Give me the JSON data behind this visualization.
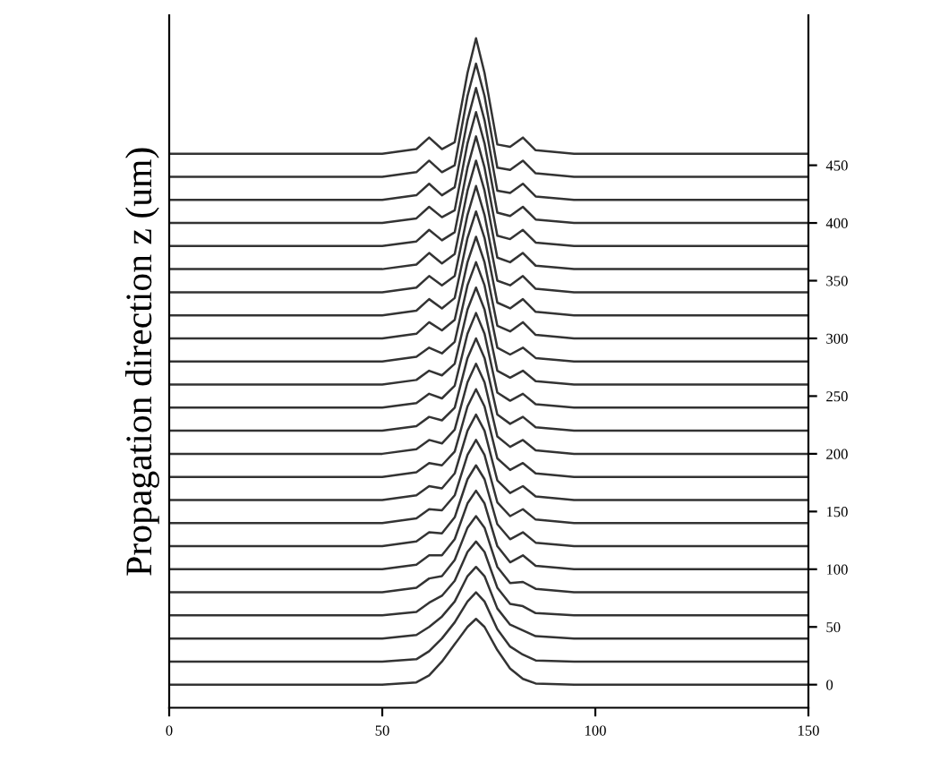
{
  "chart_data": {
    "type": "line",
    "ylabel": "Propagation direction z (um)",
    "x": [
      0,
      50,
      58,
      61,
      64,
      67,
      70,
      72,
      74,
      77,
      80,
      83,
      86,
      95,
      150
    ],
    "xlim": [
      0,
      150
    ],
    "xticks": [
      0,
      50,
      100,
      150
    ],
    "ylim": [
      -20,
      580
    ],
    "yticks": [
      0,
      50,
      100,
      150,
      200,
      250,
      300,
      350,
      400,
      450
    ],
    "grid": false,
    "marker": "none",
    "line_style": "solid",
    "series": [
      {
        "color": "#333333",
        "values": [
          0,
          0,
          2,
          8,
          20,
          35,
          50,
          57,
          50,
          30,
          14,
          5,
          1,
          0,
          0
        ]
      },
      {
        "color": "#333333",
        "values": [
          20,
          20,
          22,
          29,
          40,
          54,
          72,
          80,
          72,
          48,
          33,
          26,
          21,
          20,
          20
        ]
      },
      {
        "color": "#333333",
        "values": [
          40,
          40,
          43,
          50,
          59,
          72,
          94,
          102,
          94,
          66,
          52,
          47,
          42,
          40,
          40
        ]
      },
      {
        "color": "#333333",
        "values": [
          60,
          60,
          63,
          71,
          77,
          90,
          115,
          124,
          115,
          84,
          70,
          68,
          62,
          60,
          60
        ]
      },
      {
        "color": "#333333",
        "values": [
          80,
          80,
          84,
          92,
          94,
          108,
          136,
          146,
          136,
          102,
          88,
          89,
          83,
          80,
          80
        ]
      },
      {
        "color": "#333333",
        "values": [
          100,
          100,
          104,
          112,
          112,
          126,
          157,
          168,
          157,
          120,
          106,
          112,
          103,
          100,
          100
        ]
      },
      {
        "color": "#333333",
        "values": [
          120,
          120,
          124,
          132,
          131,
          145,
          178,
          190,
          178,
          139,
          126,
          132,
          123,
          120,
          120
        ]
      },
      {
        "color": "#333333",
        "values": [
          140,
          140,
          144,
          152,
          151,
          164,
          199,
          212,
          199,
          158,
          146,
          152,
          143,
          140,
          140
        ]
      },
      {
        "color": "#333333",
        "values": [
          160,
          160,
          164,
          172,
          170,
          183,
          220,
          234,
          220,
          177,
          166,
          172,
          163,
          160,
          160
        ]
      },
      {
        "color": "#333333",
        "values": [
          180,
          180,
          184,
          192,
          190,
          202,
          241,
          256,
          241,
          196,
          186,
          192,
          183,
          180,
          180
        ]
      },
      {
        "color": "#333333",
        "values": [
          200,
          200,
          204,
          212,
          209,
          221,
          262,
          278,
          262,
          215,
          206,
          212,
          203,
          200,
          200
        ]
      },
      {
        "color": "#333333",
        "values": [
          220,
          220,
          224,
          232,
          229,
          240,
          283,
          300,
          283,
          234,
          226,
          232,
          223,
          220,
          220
        ]
      },
      {
        "color": "#333333",
        "values": [
          240,
          240,
          244,
          252,
          248,
          259,
          304,
          322,
          304,
          253,
          246,
          252,
          243,
          240,
          240
        ]
      },
      {
        "color": "#333333",
        "values": [
          260,
          260,
          264,
          272,
          268,
          278,
          325,
          344,
          325,
          272,
          266,
          272,
          263,
          260,
          260
        ]
      },
      {
        "color": "#333333",
        "values": [
          280,
          280,
          284,
          292,
          287,
          297,
          346,
          366,
          346,
          292,
          286,
          292,
          283,
          280,
          280
        ]
      },
      {
        "color": "#333333",
        "values": [
          300,
          300,
          304,
          314,
          307,
          316,
          366,
          388,
          366,
          311,
          306,
          314,
          303,
          300,
          300
        ]
      },
      {
        "color": "#333333",
        "values": [
          320,
          320,
          324,
          334,
          326,
          335,
          387,
          410,
          387,
          331,
          326,
          334,
          323,
          320,
          320
        ]
      },
      {
        "color": "#333333",
        "values": [
          340,
          340,
          344,
          354,
          346,
          354,
          407,
          432,
          407,
          350,
          346,
          354,
          343,
          340,
          340
        ]
      },
      {
        "color": "#333333",
        "values": [
          360,
          360,
          364,
          374,
          365,
          373,
          428,
          454,
          428,
          370,
          366,
          374,
          363,
          360,
          360
        ]
      },
      {
        "color": "#333333",
        "values": [
          380,
          380,
          384,
          394,
          385,
          392,
          448,
          475,
          448,
          389,
          386,
          394,
          383,
          380,
          380
        ]
      },
      {
        "color": "#333333",
        "values": [
          400,
          400,
          404,
          414,
          405,
          411,
          469,
          496,
          469,
          409,
          406,
          414,
          403,
          400,
          400
        ]
      },
      {
        "color": "#333333",
        "values": [
          420,
          420,
          424,
          434,
          424,
          431,
          489,
          517,
          489,
          428,
          426,
          434,
          423,
          420,
          420
        ]
      },
      {
        "color": "#333333",
        "values": [
          440,
          440,
          444,
          454,
          444,
          450,
          510,
          538,
          510,
          448,
          446,
          454,
          443,
          440,
          440
        ]
      },
      {
        "color": "#333333",
        "values": [
          460,
          460,
          464,
          474,
          464,
          470,
          530,
          560,
          530,
          468,
          466,
          474,
          463,
          460,
          460
        ]
      }
    ]
  }
}
